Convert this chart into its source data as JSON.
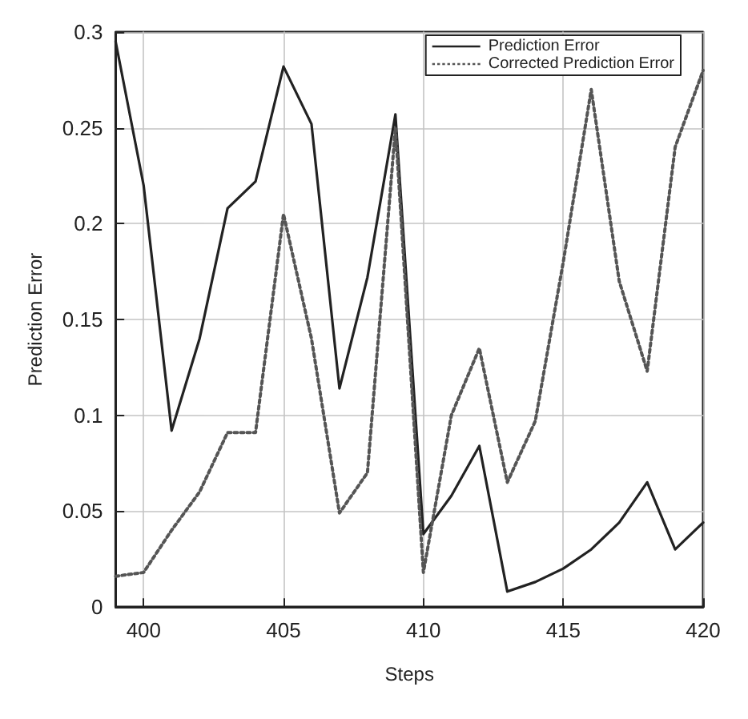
{
  "chart_data": {
    "type": "line",
    "xlabel": "Steps",
    "ylabel": "Prediction Error",
    "x": [
      399,
      400,
      401,
      402,
      403,
      404,
      405,
      406,
      407,
      408,
      409,
      410,
      411,
      412,
      413,
      414,
      415,
      416,
      417,
      418,
      419,
      420
    ],
    "series": [
      {
        "name": "Prediction Error",
        "color": "#222222",
        "line_style": "solid",
        "values": [
          0.295,
          0.22,
          0.092,
          0.14,
          0.208,
          0.222,
          0.282,
          0.252,
          0.114,
          0.172,
          0.257,
          0.038,
          0.058,
          0.084,
          0.008,
          0.013,
          0.02,
          0.03,
          0.044,
          0.065,
          0.03,
          0.044
        ]
      },
      {
        "name": "Corrected Prediction Error",
        "color": "#555555",
        "line_style": "dotted",
        "values": [
          0.016,
          0.018,
          0.04,
          0.06,
          0.091,
          0.091,
          0.205,
          0.14,
          0.049,
          0.07,
          0.25,
          0.018,
          0.1,
          0.135,
          0.065,
          0.097,
          0.18,
          0.27,
          0.17,
          0.123,
          0.24,
          0.28
        ]
      }
    ],
    "xlim": [
      399,
      420
    ],
    "xticks": [
      400,
      405,
      410,
      415,
      420
    ],
    "ylim": [
      0,
      0.3
    ],
    "yticks": [
      0,
      0.05,
      0.1,
      0.15,
      0.2,
      0.25,
      0.3
    ],
    "grid": true,
    "legend": "top right",
    "marker": "none"
  }
}
